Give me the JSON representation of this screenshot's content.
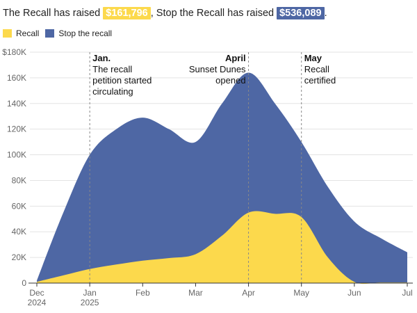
{
  "headline": {
    "part1": "The Recall has raised ",
    "recall_amount": "$161,796",
    "part2": ", Stop the Recall has raised ",
    "stop_amount": "$536,089",
    "part3": "."
  },
  "colors": {
    "recall": "#fcd94c",
    "stop": "#4e67a4",
    "grid": "#e3e3e3",
    "axis_text": "#666666",
    "annotation_line": "#888888"
  },
  "chart_data": {
    "type": "area",
    "title": "The Recall has raised $161,796, Stop the Recall has raised $536,089.",
    "xlabel": "",
    "ylabel": "",
    "ylim": [
      0,
      180000
    ],
    "yticks": [
      0,
      20000,
      40000,
      60000,
      80000,
      100000,
      120000,
      140000,
      160000,
      180000
    ],
    "ytick_labels": [
      "0",
      "20K",
      "40K",
      "60K",
      "80K",
      "100K",
      "120K",
      "140K",
      "160K",
      "$180K"
    ],
    "xlim": [
      0,
      7
    ],
    "xticks": [
      {
        "x": 0,
        "label": "Dec",
        "sub": "2024"
      },
      {
        "x": 1,
        "label": "Jan",
        "sub": "2025"
      },
      {
        "x": 2,
        "label": "Feb",
        "sub": ""
      },
      {
        "x": 3,
        "label": "Mar",
        "sub": ""
      },
      {
        "x": 4,
        "label": "Apr",
        "sub": ""
      },
      {
        "x": 5,
        "label": "May",
        "sub": ""
      },
      {
        "x": 6,
        "label": "Jun",
        "sub": ""
      },
      {
        "x": 7,
        "label": "Jul",
        "sub": ""
      }
    ],
    "legend": [
      "Recall",
      "Stop the recall"
    ],
    "series": [
      {
        "name": "Stop the recall",
        "x": [
          0,
          0.5,
          1,
          1.5,
          2,
          2.5,
          3,
          3.5,
          4,
          4.5,
          5,
          5.5,
          6,
          6.5,
          7
        ],
        "values": [
          2000,
          55000,
          100000,
          120000,
          129000,
          120000,
          110000,
          140000,
          164000,
          140000,
          110000,
          75000,
          48000,
          35000,
          24000
        ]
      },
      {
        "name": "Recall",
        "x": [
          0,
          0.5,
          1,
          1.5,
          2,
          2.5,
          3,
          3.5,
          4,
          4.5,
          5,
          5.5,
          6,
          6.5,
          7
        ],
        "values": [
          1000,
          6000,
          11000,
          14500,
          17500,
          19500,
          22500,
          37000,
          55000,
          54000,
          51500,
          20000,
          1000,
          500,
          500
        ]
      }
    ],
    "annotations": [
      {
        "x": 1,
        "title": "Jan.",
        "lines": [
          "The recall",
          "petition started",
          "circulating"
        ],
        "align": "left"
      },
      {
        "x": 4,
        "title": "April",
        "lines": [
          "Sunset Dunes",
          "opened"
        ],
        "align": "right"
      },
      {
        "x": 5,
        "title": "May",
        "lines": [
          "Recall",
          "certified"
        ],
        "align": "left"
      }
    ]
  }
}
